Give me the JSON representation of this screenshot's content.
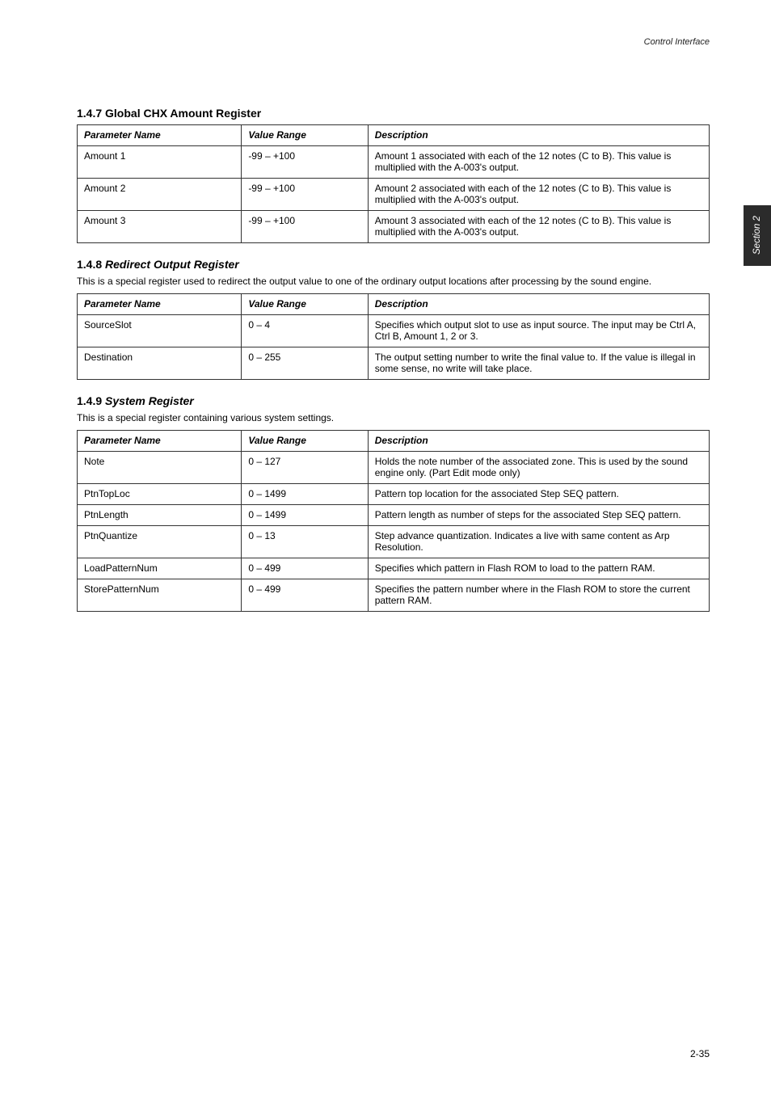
{
  "page": {
    "header_right": "Control Interface",
    "side_tab": "Section 2",
    "footer_page_num": "2-35"
  },
  "section1": {
    "heading": "1.4.7 Global CHX Amount Register",
    "table": {
      "headers": [
        "Parameter Name",
        "Value Range",
        "Description"
      ],
      "rows": [
        [
          "Amount 1",
          "-99 – +100",
          "Amount 1 associated with each of the 12 notes (C to B). This value is multiplied with the A-003's output."
        ],
        [
          "Amount 2",
          "-99 – +100",
          "Amount 2 associated with each of the 12 notes (C to B). This value is multiplied with the A-003's output."
        ],
        [
          "Amount 3",
          "-99 – +100",
          "Amount 3 associated with each of the 12 notes (C to B). This value is multiplied with the A-003's output."
        ]
      ]
    }
  },
  "section2": {
    "heading_num": "1.4.8",
    "heading_title": "Redirect Output Register",
    "note": "This is a special register used to redirect the output value to one of the ordinary output locations after processing by the sound engine.",
    "table": {
      "headers": [
        "Parameter Name",
        "Value Range",
        "Description"
      ],
      "rows": [
        [
          "SourceSlot",
          "0 – 4",
          "Specifies which output slot to use as input source. The input may be Ctrl A, Ctrl B, Amount 1, 2 or 3."
        ],
        [
          "Destination",
          "0 – 255",
          "The output setting number to write the final value to. If the value is illegal in some sense, no write will take place."
        ]
      ]
    }
  },
  "section3": {
    "heading_num": "1.4.9",
    "heading_title": "System Register",
    "note": "This is a special register containing various system settings.",
    "table": {
      "headers": [
        "Parameter Name",
        "Value Range",
        "Description"
      ],
      "rows": [
        [
          "Note",
          "0 – 127",
          "Holds the note number of the associated zone. This is used by the sound engine only. (Part Edit mode only)"
        ],
        [
          "PtnTopLoc",
          "0 – 1499",
          "Pattern top location for the associated Step SEQ pattern."
        ],
        [
          "PtnLength",
          "0 – 1499",
          "Pattern length as number of steps for the associated Step SEQ pattern."
        ],
        [
          "PtnQuantize",
          "0 – 13",
          "Step advance quantization. Indicates a live with same content as Arp Resolution."
        ],
        [
          "LoadPatternNum",
          "0 – 499",
          "Specifies which pattern in Flash ROM to load to the pattern RAM."
        ],
        [
          "StorePatternNum",
          "0 – 499",
          "Specifies the pattern number where in the Flash ROM to store the current pattern RAM."
        ]
      ]
    }
  }
}
